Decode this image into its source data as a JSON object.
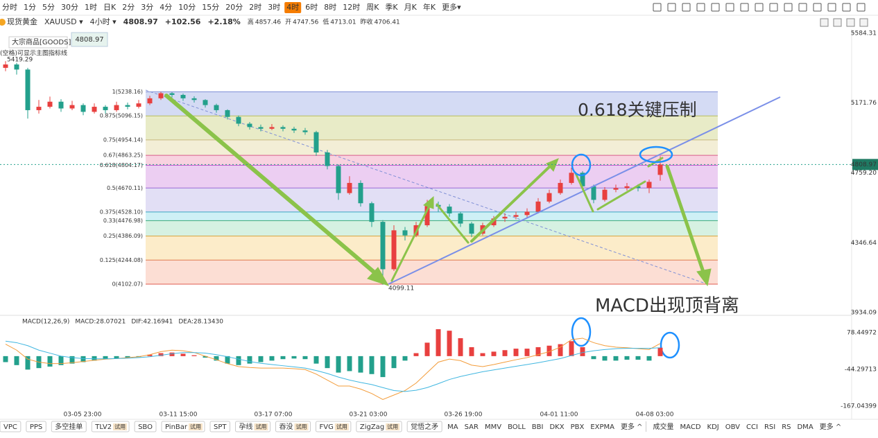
{
  "toolbar": {
    "intervals": [
      "分时",
      "1分",
      "5分",
      "30分",
      "1时",
      "日K",
      "2分",
      "3分",
      "4分",
      "10分",
      "15分",
      "20分",
      "2时",
      "3时",
      "4时",
      "6时",
      "8时",
      "12时",
      "周K",
      "季K",
      "月K",
      "年K",
      "更多▾"
    ],
    "active": 14
  },
  "header": {
    "name": "现货黄金",
    "symbol": "XAUUSD ▾",
    "period": "4小时 ▾",
    "price": "4808.97",
    "change": "+102.56",
    "change_pct": "+2.18%",
    "stats": [
      [
        "高",
        "4857.46"
      ],
      [
        "开",
        "4747.56"
      ],
      [
        "低",
        "4713.01"
      ],
      [
        "昨收",
        "4706.41"
      ]
    ]
  },
  "overlay": {
    "tooltip": "大宗商品[GOODS]",
    "badge": "4808.97",
    "note": "(空格)可显示主图指标线"
  },
  "chart_data": {
    "type": "candlestick",
    "up_color": "#e8403f",
    "down_color": "#23a08c",
    "candles": [
      [
        5380,
        5419.29,
        5360,
        5400
      ],
      [
        5400,
        5410,
        5340,
        5370
      ],
      [
        5370,
        5380,
        5080,
        5130
      ],
      [
        5130,
        5190,
        5110,
        5150
      ],
      [
        5150,
        5210,
        5140,
        5180
      ],
      [
        5180,
        5195,
        5120,
        5140
      ],
      [
        5140,
        5185,
        5130,
        5160
      ],
      [
        5160,
        5170,
        5100,
        5120
      ],
      [
        5120,
        5170,
        5110,
        5150
      ],
      [
        5150,
        5160,
        5110,
        5130
      ],
      [
        5130,
        5180,
        5120,
        5160
      ],
      [
        5160,
        5175,
        5135,
        5150
      ],
      [
        5150,
        5190,
        5140,
        5170
      ],
      [
        5170,
        5215,
        5160,
        5200
      ],
      [
        5200,
        5238.16,
        5190,
        5230
      ],
      [
        5230,
        5236,
        5205,
        5220
      ],
      [
        5220,
        5228,
        5185,
        5200
      ],
      [
        5200,
        5212,
        5175,
        5190
      ],
      [
        5190,
        5195,
        5145,
        5160
      ],
      [
        5160,
        5168,
        5115,
        5130
      ],
      [
        5130,
        5135,
        5075,
        5090
      ],
      [
        5090,
        5098,
        5035,
        5050
      ],
      [
        5050,
        5060,
        5015,
        5030
      ],
      [
        5030,
        5045,
        5005,
        5020
      ],
      [
        5020,
        5048,
        5012,
        5030
      ],
      [
        5030,
        5040,
        5005,
        5020
      ],
      [
        5020,
        5032,
        4995,
        5010
      ],
      [
        5010,
        5025,
        4985,
        5000
      ],
      [
        5000,
        5008,
        4860,
        4880
      ],
      [
        4880,
        4895,
        4780,
        4800
      ],
      [
        4800,
        4810,
        4600,
        4640
      ],
      [
        4640,
        4740,
        4630,
        4700
      ],
      [
        4700,
        4715,
        4560,
        4580
      ],
      [
        4580,
        4590,
        4440,
        4470
      ],
      [
        4470,
        4480,
        4099.11,
        4190
      ],
      [
        4190,
        4450,
        4180,
        4420
      ],
      [
        4420,
        4440,
        4360,
        4390
      ],
      [
        4390,
        4470,
        4380,
        4450
      ],
      [
        4450,
        4600,
        4440,
        4570
      ],
      [
        4570,
        4590,
        4530,
        4560
      ],
      [
        4560,
        4575,
        4500,
        4520
      ],
      [
        4520,
        4530,
        4440,
        4460
      ],
      [
        4460,
        4470,
        4380,
        4400
      ],
      [
        4400,
        4465,
        4390,
        4450
      ],
      [
        4450,
        4505,
        4440,
        4490
      ],
      [
        4490,
        4520,
        4470,
        4500
      ],
      [
        4500,
        4530,
        4485,
        4510
      ],
      [
        4510,
        4550,
        4495,
        4530
      ],
      [
        4530,
        4610,
        4520,
        4590
      ],
      [
        4590,
        4660,
        4580,
        4640
      ],
      [
        4640,
        4720,
        4630,
        4700
      ],
      [
        4700,
        4790,
        4690,
        4760
      ],
      [
        4760,
        4770,
        4660,
        4680
      ],
      [
        4680,
        4690,
        4580,
        4600
      ],
      [
        4600,
        4675,
        4590,
        4660
      ],
      [
        4660,
        4690,
        4645,
        4670
      ],
      [
        4670,
        4700,
        4655,
        4680
      ],
      [
        4680,
        4692,
        4650,
        4670
      ],
      [
        4670,
        4720,
        4640,
        4706.41
      ],
      [
        4747.56,
        4857.46,
        4713.01,
        4808.97
      ]
    ],
    "ylim": [
      3934.09,
      5584.31
    ],
    "yticks": [
      5584.31,
      5171.76,
      {
        "value": 4759.2,
        "label": "4759.20"
      },
      4346.64,
      3934.09
    ],
    "last_price": 4808.97,
    "high_label": "5419.29",
    "low_label": "4099.11",
    "fib_levels": [
      {
        "value": 5238.16,
        "label": "1(5238.16)",
        "color": "#7f8fd6",
        "fill": "#cdd5f2"
      },
      {
        "value": 5096.15,
        "label": "0.875(5096.15)",
        "color": "#b7bd5a",
        "fill": "#e4e7bd"
      },
      {
        "value": 4954.14,
        "label": "0.75(4954.14)",
        "color": "#c7b77c",
        "fill": "#f1ebcf"
      },
      {
        "value": 4863.25,
        "label": "0.67(4863.25)",
        "color": "#d85c8a",
        "fill": "#f7cadb"
      },
      {
        "value": 4804.17,
        "label": "0.618(4804.17)",
        "color": "#c25ad0",
        "fill": "#e9c6f0"
      },
      {
        "value": 4670.11,
        "label": "0.5(4670.11)",
        "color": "#9a6ad6",
        "fill": "#ddd9f3"
      },
      {
        "value": 4528.1,
        "label": "0.375(4528.10)",
        "color": "#3aa6c2",
        "fill": "#c6edf3"
      },
      {
        "value": 4476.98,
        "label": "0.33(4476.98)",
        "color": "#3aa87a",
        "fill": "#cfeedd"
      },
      {
        "value": 4386.09,
        "label": "0.25(4386.09)",
        "color": "#d9a23b",
        "fill": "#fbe9c0"
      },
      {
        "value": 4244.08,
        "label": "0.125(4244.08)",
        "color": "#e07a4f",
        "fill": "#fcd8cc"
      },
      {
        "value": 4102.07,
        "label": "0(4102.07)",
        "color": "#e05a4f",
        "fill": "#fcd8cc"
      }
    ],
    "annotations": [
      "0.618关键压制",
      "MACD出现顶背离"
    ],
    "macd": {
      "title": "MACD(12,26,9)",
      "macd_label": "MACD:28.07021",
      "dif_label": "DIF:42.16941",
      "dea_label": "DEA:28.13430",
      "ylim": [
        -167.04399,
        78.44972
      ],
      "yticks": [
        78.44972,
        -44.29713,
        -167.04399
      ],
      "hist": [
        -20,
        -30,
        -45,
        -40,
        -35,
        -30,
        -25,
        -20,
        -15,
        -10,
        -8,
        -5,
        -3,
        5,
        10,
        12,
        8,
        3,
        -5,
        -15,
        -25,
        -30,
        -25,
        -20,
        -15,
        -10,
        -8,
        -10,
        -25,
        -40,
        -55,
        -50,
        -55,
        -60,
        -70,
        -40,
        -15,
        10,
        45,
        90,
        85,
        60,
        30,
        10,
        15,
        20,
        25,
        25,
        30,
        35,
        40,
        50,
        30,
        -10,
        -15,
        -15,
        -12,
        -12,
        -15,
        28.07021
      ],
      "dif": [
        40,
        20,
        -10,
        -20,
        -25,
        -25,
        -22,
        -18,
        -14,
        -10,
        -8,
        -5,
        -2,
        5,
        15,
        20,
        18,
        12,
        0,
        -12,
        -25,
        -35,
        -38,
        -40,
        -40,
        -40,
        -42,
        -45,
        -60,
        -80,
        -100,
        -100,
        -110,
        -125,
        -145,
        -130,
        -115,
        -90,
        -55,
        -20,
        -10,
        -15,
        -30,
        -35,
        -28,
        -20,
        -12,
        -5,
        5,
        15,
        30,
        55,
        60,
        45,
        35,
        30,
        28,
        25,
        22,
        42.16941
      ],
      "dea": [
        50,
        45,
        35,
        20,
        10,
        0,
        -5,
        -8,
        -9,
        -9,
        -8,
        -7,
        -5,
        -2,
        3,
        8,
        12,
        12,
        10,
        5,
        -2,
        -10,
        -18,
        -24,
        -28,
        -32,
        -36,
        -40,
        -48,
        -58,
        -70,
        -80,
        -88,
        -95,
        -105,
        -115,
        -118,
        -114,
        -105,
        -92,
        -78,
        -68,
        -60,
        -52,
        -46,
        -40,
        -34,
        -28,
        -22,
        -15,
        -8,
        2,
        12,
        18,
        22,
        25,
        26,
        26,
        26,
        28.1343
      ]
    },
    "time_labels": [
      "03-05 23:00",
      "03-11 15:00",
      "03-17 07:00",
      "03-21 03:00",
      "03-26 19:00",
      "04-01 11:00",
      "04-08 03:00"
    ]
  },
  "bottom": {
    "trial": "试用",
    "left": [
      {
        "text": "VPC"
      },
      {
        "text": "PPS"
      },
      {
        "text": "多空挂单"
      },
      {
        "text": "TLV2",
        "trial": true
      },
      {
        "text": "SBO"
      },
      {
        "text": "PinBar",
        "trial": true
      },
      {
        "text": "SPT"
      },
      {
        "text": "孕线",
        "trial": true
      },
      {
        "text": "吞没",
        "trial": true
      },
      {
        "text": "FVG",
        "trial": true
      },
      {
        "text": "ZigZag",
        "trial": true
      },
      {
        "text": "觉悟之矛"
      }
    ],
    "main": [
      "MA",
      "SAR",
      "MMV",
      "BOLL",
      "BBI",
      "DKX",
      "PBX",
      "EXPMA",
      "更多 ^"
    ],
    "sub": [
      "成交量",
      "MACD",
      "KDJ",
      "OBV",
      "CCI",
      "RSI",
      "RS",
      "DMA",
      "更多 ^"
    ]
  }
}
